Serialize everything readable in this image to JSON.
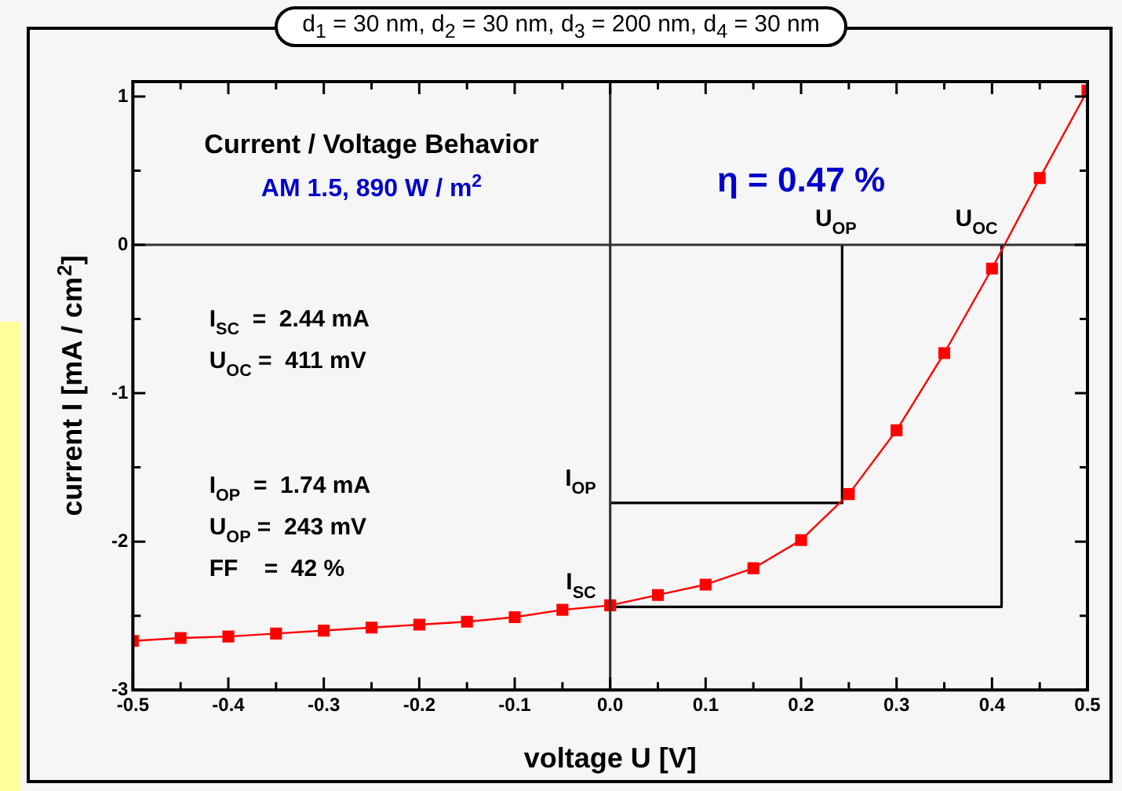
{
  "chart_data": {
    "type": "line",
    "title": "d$_{1}$ = 30 nm, d$_{2}$ = 30 nm, d$_{3}$ = 200 nm, d$_{4}$ = 30 nm",
    "xlabel": "voltage U [V]",
    "ylabel": "current I [mA / cm$^{2}$]",
    "x": [
      -0.5,
      -0.45,
      -0.4,
      -0.35,
      -0.3,
      -0.25,
      -0.2,
      -0.15,
      -0.1,
      -0.05,
      0,
      0.05,
      0.1,
      0.15,
      0.2,
      0.25,
      0.3,
      0.35,
      0.4,
      0.45,
      0.5
    ],
    "series": [
      {
        "color": "#333333",
        "marker": "none",
        "x": [
          -0.5,
          0.5
        ],
        "values": [
          0,
          0
        ]
      },
      {
        "color": "#333333",
        "marker": "none",
        "x": [
          0,
          0
        ],
        "values": [
          -3,
          1.1
        ]
      },
      {
        "color": "#ff0000",
        "marker": "square",
        "values": [
          -2.67,
          -2.65,
          -2.64,
          -2.62,
          -2.6,
          -2.58,
          -2.56,
          -2.54,
          -2.51,
          -2.46,
          -2.43,
          -2.36,
          -2.29,
          -2.18,
          -1.99,
          -1.68,
          -1.25,
          -0.73,
          -0.16,
          0.45,
          1.04
        ]
      },
      {
        "color": "#000000",
        "marker": "none",
        "x": [
          0,
          0.41,
          0.41
        ],
        "values": [
          -2.44,
          -2.44,
          0
        ]
      },
      {
        "color": "#000000",
        "marker": "none",
        "x": [
          0,
          0.243,
          0.243
        ],
        "values": [
          -1.74,
          -1.74,
          0
        ]
      }
    ],
    "xlim": [
      -0.5,
      0.5
    ],
    "xticks": [
      -0.5,
      {
        "value": -0.45,
        "label": null
      },
      -0.4,
      {
        "value": -0.35,
        "label": null
      },
      -0.3,
      {
        "value": -0.25,
        "label": null
      },
      -0.2,
      {
        "value": -0.15,
        "label": null
      },
      -0.1,
      {
        "value": -0.05,
        "label": null
      },
      {
        "value": 0,
        "label": "0.0"
      },
      {
        "value": 0.05,
        "label": null
      },
      0.1,
      {
        "value": 0.15,
        "label": null
      },
      0.2,
      {
        "value": 0.25,
        "label": null
      },
      0.3,
      {
        "value": 0.35,
        "label": null
      },
      0.4,
      {
        "value": 0.45,
        "label": null
      },
      0.5
    ],
    "ylim": [
      -3,
      1.1
    ],
    "yticks": [
      -3,
      {
        "value": -2.5,
        "label": null
      },
      -2,
      {
        "value": -1.5,
        "label": null
      },
      -1,
      {
        "value": -0.5,
        "label": null
      },
      0,
      {
        "value": 0.5,
        "label": null
      },
      1
    ],
    "annotations": [
      "Current / Voltage Behavior",
      "AM 1.5, 890 W / m$^{2}$",
      "η = 0.47 %",
      "I$_{SC}$  =  2.44 mA",
      "U$_{OC}$ =  411 mV",
      "I$_{OP}$  =  1.74 mA",
      "U$_{OP}$ =  243 mV",
      "FF    =  42 %",
      {
        "text": "U$_{OP}$",
        "x": 0.243,
        "y": 0
      },
      {
        "text": "U$_{OC}$",
        "x": 0.41,
        "y": 0
      },
      {
        "text": "I$_{OP}$",
        "x": 0,
        "y": -1.74
      },
      {
        "text": "I$_{SC}$",
        "x": 0,
        "y": -2.44
      }
    ],
    "grid": false,
    "legend": false,
    "line_style": "solid"
  }
}
